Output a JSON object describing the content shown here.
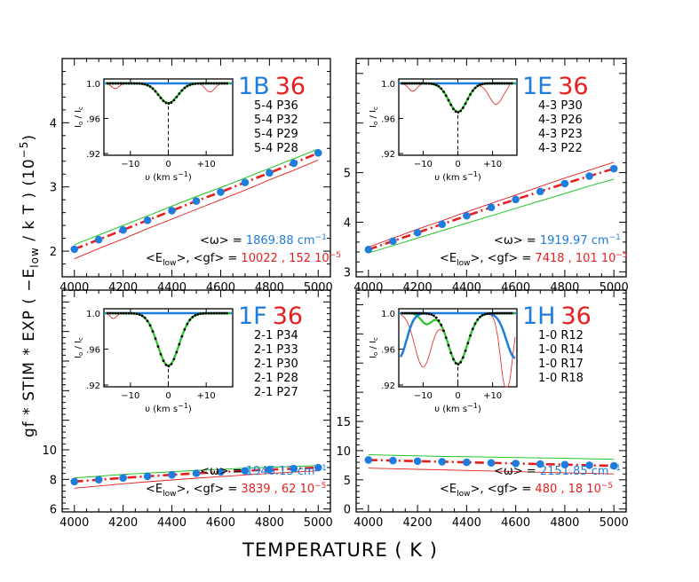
{
  "figure": {
    "xlabel": "TEMPERATURE  ( K )",
    "ylabel": "gf * STIM * EXP ( −E",
    "ylabel_sub": "low",
    "ylabel_tail": " / k T )   (10",
    "ylabel_exp": "−5",
    "ylabel_close": ")",
    "colors": {
      "blue": "#1e7ddc",
      "red": "#e61e1e",
      "green": "#22c522",
      "black": "#000000"
    }
  },
  "panels": [
    {
      "id": "1B",
      "label": "1B",
      "number": "36",
      "transitions": [
        "5-4  P36",
        "5-4  P32",
        "5-4  P29",
        "5-4  P28"
      ],
      "omega_prefix": "<ω> = ",
      "omega_value": "1869.88 cm",
      "omega_exp": "−1",
      "elow_prefix": "<E",
      "elow_sub": "low",
      "elow_mid": ">,  <gf> = ",
      "elow_value": "10022 , 152 10",
      "elow_exp": "−5",
      "inset": {
        "ylabel": "I",
        "ytick_labels": [
          "1.0",
          ".96",
          ".92"
        ],
        "xtick_labels": [
          "−10",
          "0",
          "+10"
        ],
        "xlabel": "υ  (km s",
        "xlabel_exp": "−1",
        "xlabel_close": ")",
        "dip_depth": 0.977,
        "dip_width": 2.5,
        "red_depth": 0.978
      }
    },
    {
      "id": "1E",
      "label": "1E",
      "number": "36",
      "transitions": [
        "4-3  P30",
        "4-3  P26",
        "4-3  P23",
        "4-3  P22"
      ],
      "omega_prefix": "<ω> = ",
      "omega_value": "1919.97 cm",
      "omega_exp": "−1",
      "elow_prefix": "<E",
      "elow_sub": "low",
      "elow_mid": ">,  <gf> = ",
      "elow_value": "7418 , 101 10",
      "elow_exp": "−5",
      "inset": {
        "ylabel": "I",
        "ytick_labels": [
          "1.0",
          ".96",
          ".92"
        ],
        "xtick_labels": [
          "−10",
          "0",
          "+10"
        ],
        "xlabel": "υ  (km s",
        "xlabel_exp": "−1",
        "xlabel_close": ")",
        "dip_depth": 0.967,
        "dip_width": 2.6,
        "red_depth": 0.968
      }
    },
    {
      "id": "1F",
      "label": "1F",
      "number": "36",
      "transitions": [
        "2-1  P34",
        "2-1  P33",
        "2-1  P30",
        "2-1  P28",
        "2-1  P27"
      ],
      "omega_prefix": "<ω> = ",
      "omega_value": "1946.13 cm",
      "omega_exp": "−1",
      "elow_prefix": "<E",
      "elow_sub": "low",
      "elow_mid": ">,  <gf> = ",
      "elow_value": "3839 , 62 10",
      "elow_exp": "−5",
      "inset": {
        "ylabel": "I",
        "ytick_labels": [
          "1.0",
          ".96",
          ".92"
        ],
        "xtick_labels": [
          "−10",
          "0",
          "+10"
        ],
        "xlabel": "υ  (km s",
        "xlabel_exp": "−1",
        "xlabel_close": ")",
        "dip_depth": 0.941,
        "dip_width": 2.8,
        "red_depth": 0.942
      }
    },
    {
      "id": "1H",
      "label": "1H",
      "number": "36",
      "transitions": [
        "1-0  R12",
        "1-0  R14",
        "1-0  R17",
        "1-0  R18"
      ],
      "omega_prefix": "<ω> = ",
      "omega_value": "2151.85 cm",
      "omega_exp": "−1",
      "elow_prefix": "<E",
      "elow_sub": "low",
      "elow_mid": ">,  <gf> = ",
      "elow_value": "480 , 18 10",
      "elow_exp": "−5",
      "inset": {
        "ylabel": "I",
        "ytick_labels": [
          "1.0",
          ".96",
          ".92"
        ],
        "xtick_labels": [
          "−10",
          "0",
          "+10"
        ],
        "xlabel": "υ  (km s",
        "xlabel_exp": "−1",
        "xlabel_close": ")",
        "dip_depth": 0.943,
        "dip_width": 2.8,
        "red_depth": 0.944
      }
    }
  ],
  "chart_data": [
    {
      "type": "line",
      "panel": "1B",
      "xlim": [
        3950,
        5050
      ],
      "ylim": [
        1.6,
        5.0
      ],
      "xticks": [
        4000,
        4200,
        4400,
        4600,
        4800,
        5000
      ],
      "yticks": [
        2,
        3,
        4
      ],
      "x": [
        4000,
        4100,
        4200,
        4300,
        4400,
        4500,
        4600,
        4700,
        4800,
        4900,
        5000
      ],
      "series": [
        {
          "color": "blue",
          "style": "points",
          "values": [
            2.03,
            2.18,
            2.33,
            2.48,
            2.63,
            2.78,
            2.92,
            3.07,
            3.22,
            3.37,
            3.53
          ]
        },
        {
          "color": "red",
          "style": "dash-dot",
          "values": [
            2.03,
            2.18,
            2.33,
            2.48,
            2.63,
            2.78,
            2.92,
            3.07,
            3.22,
            3.37,
            3.53
          ]
        },
        {
          "color": "green",
          "style": "solid",
          "values": [
            2.1,
            2.25,
            2.4,
            2.55,
            2.7,
            2.85,
            2.99,
            3.14,
            3.29,
            3.44,
            3.59
          ]
        },
        {
          "color": "red",
          "style": "thin",
          "values": [
            1.88,
            2.04,
            2.19,
            2.35,
            2.5,
            2.65,
            2.8,
            2.95,
            3.11,
            3.26,
            3.42
          ]
        }
      ]
    },
    {
      "type": "line",
      "panel": "1E",
      "xlim": [
        3950,
        5050
      ],
      "ylim": [
        2.9,
        7.3
      ],
      "xticks": [
        4000,
        4200,
        4400,
        4600,
        4800,
        5000
      ],
      "yticks": [
        3,
        4,
        5
      ],
      "x": [
        4000,
        4100,
        4200,
        4300,
        4400,
        4500,
        4600,
        4700,
        4800,
        4900,
        5000
      ],
      "series": [
        {
          "color": "blue",
          "style": "points",
          "values": [
            3.45,
            3.62,
            3.79,
            3.96,
            4.13,
            4.3,
            4.46,
            4.62,
            4.78,
            4.93,
            5.08
          ]
        },
        {
          "color": "red",
          "style": "dash-dot",
          "values": [
            3.45,
            3.62,
            3.79,
            3.96,
            4.13,
            4.3,
            4.46,
            4.62,
            4.78,
            4.93,
            5.08
          ]
        },
        {
          "color": "green",
          "style": "solid",
          "values": [
            3.38,
            3.53,
            3.68,
            3.83,
            3.98,
            4.13,
            4.28,
            4.43,
            4.58,
            4.73,
            4.87
          ]
        },
        {
          "color": "red",
          "style": "thin",
          "values": [
            3.5,
            3.68,
            3.86,
            4.03,
            4.21,
            4.38,
            4.55,
            4.72,
            4.89,
            5.05,
            5.21
          ]
        }
      ]
    },
    {
      "type": "line",
      "panel": "1F",
      "xlim": [
        3950,
        5050
      ],
      "ylim": [
        5.8,
        20.8
      ],
      "xticks": [
        4000,
        4200,
        4400,
        4600,
        4800,
        5000
      ],
      "yticks": [
        6,
        8,
        10
      ],
      "x": [
        4000,
        4100,
        4200,
        4300,
        4400,
        4500,
        4600,
        4700,
        4800,
        4900,
        5000
      ],
      "series": [
        {
          "color": "blue",
          "style": "points",
          "values": [
            7.85,
            7.98,
            8.1,
            8.21,
            8.31,
            8.41,
            8.5,
            8.58,
            8.66,
            8.73,
            8.8
          ]
        },
        {
          "color": "red",
          "style": "dash-dot",
          "values": [
            7.85,
            7.98,
            8.1,
            8.21,
            8.31,
            8.41,
            8.5,
            8.58,
            8.66,
            8.73,
            8.8
          ]
        },
        {
          "color": "green",
          "style": "solid",
          "values": [
            8.1,
            8.22,
            8.33,
            8.43,
            8.52,
            8.6,
            8.68,
            8.75,
            8.82,
            8.88,
            8.94
          ]
        },
        {
          "color": "red",
          "style": "thin",
          "values": [
            7.4,
            7.55,
            7.7,
            7.84,
            7.96,
            8.08,
            8.19,
            8.3,
            8.4,
            8.5,
            8.58
          ]
        }
      ]
    },
    {
      "type": "line",
      "panel": "1H",
      "xlim": [
        3950,
        5050
      ],
      "ylim": [
        -0.5,
        37.5
      ],
      "xticks": [
        4000,
        4200,
        4400,
        4600,
        4800,
        5000
      ],
      "yticks": [
        0,
        5,
        10,
        15
      ],
      "x": [
        4000,
        4100,
        4200,
        4300,
        4400,
        4500,
        4600,
        4700,
        4800,
        4900,
        5000
      ],
      "series": [
        {
          "color": "blue",
          "style": "points",
          "values": [
            8.4,
            8.3,
            8.2,
            8.1,
            8.0,
            7.9,
            7.8,
            7.7,
            7.6,
            7.5,
            7.4
          ]
        },
        {
          "color": "red",
          "style": "dash-dot",
          "values": [
            8.4,
            8.3,
            8.2,
            8.1,
            8.0,
            7.9,
            7.8,
            7.7,
            7.6,
            7.5,
            7.4
          ]
        },
        {
          "color": "green",
          "style": "solid",
          "values": [
            9.3,
            9.2,
            9.1,
            9.0,
            8.95,
            8.9,
            8.8,
            8.75,
            8.7,
            8.6,
            8.5
          ]
        },
        {
          "color": "red",
          "style": "thin",
          "values": [
            7.0,
            6.9,
            6.8,
            6.7,
            6.6,
            6.5,
            6.4,
            6.3,
            6.2,
            6.1,
            6.0
          ]
        }
      ]
    }
  ]
}
